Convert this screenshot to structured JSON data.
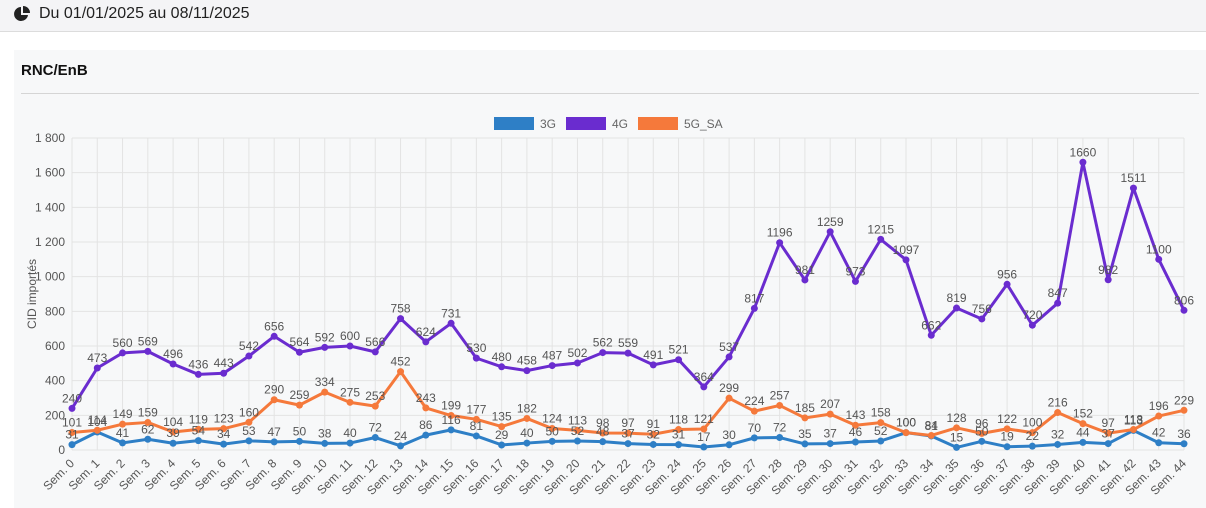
{
  "header": {
    "period": "Du 01/01/2025 au 08/11/2025",
    "icon": "pie-chart-icon"
  },
  "card": {
    "title": "RNC/EnB"
  },
  "chart_data": {
    "type": "line",
    "title": "",
    "xlabel": "",
    "ylabel": "CID importés",
    "ylim": [
      0,
      1800
    ],
    "yticks": [
      0,
      200,
      400,
      600,
      800,
      1000,
      1200,
      1400,
      1600,
      1800
    ],
    "ytick_labels": [
      "0",
      "200",
      "400",
      "600",
      "800",
      "1 000",
      "1 200",
      "1 400",
      "1 600",
      "1 800"
    ],
    "grid": true,
    "legend": "top-center",
    "categories": [
      "Sem. 0",
      "Sem. 1",
      "Sem. 2",
      "Sem. 3",
      "Sem. 4",
      "Sem. 5",
      "Sem. 6",
      "Sem. 7",
      "Sem. 8",
      "Sem. 9",
      "Sem. 10",
      "Sem. 11",
      "Sem. 12",
      "Sem. 13",
      "Sem. 14",
      "Sem. 15",
      "Sem. 16",
      "Sem. 17",
      "Sem. 18",
      "Sem. 19",
      "Sem. 20",
      "Sem. 21",
      "Sem. 22",
      "Sem. 23",
      "Sem. 24",
      "Sem. 25",
      "Sem. 26",
      "Sem. 27",
      "Sem. 28",
      "Sem. 29",
      "Sem. 30",
      "Sem. 31",
      "Sem. 32",
      "Sem. 33",
      "Sem. 34",
      "Sem. 35",
      "Sem. 36",
      "Sem. 37",
      "Sem. 38",
      "Sem. 39",
      "Sem. 40",
      "Sem. 41",
      "Sem. 42",
      "Sem. 43",
      "Sem. 44"
    ],
    "series": [
      {
        "name": "3G",
        "color": "#2e7fc6",
        "values": [
          31,
          104,
          41,
          62,
          39,
          54,
          34,
          53,
          47,
          50,
          38,
          40,
          72,
          24,
          86,
          116,
          81,
          29,
          40,
          50,
          52,
          48,
          37,
          32,
          31,
          17,
          30,
          70,
          72,
          35,
          37,
          46,
          52,
          100,
          81,
          15,
          50,
          19,
          22,
          32,
          44,
          37,
          113,
          42,
          36
        ]
      },
      {
        "name": "4G",
        "color": "#6a2ccf",
        "values": [
          240,
          473,
          560,
          569,
          496,
          436,
          443,
          542,
          656,
          564,
          592,
          600,
          566,
          758,
          624,
          731,
          530,
          480,
          458,
          487,
          502,
          562,
          559,
          491,
          521,
          364,
          537,
          817,
          1196,
          981,
          1259,
          973,
          1215,
          1097,
          662,
          819,
          756,
          956,
          720,
          847,
          1660,
          982,
          1511,
          1100,
          806
        ]
      },
      {
        "name": "5G_SA",
        "color": "#f5793b",
        "values": [
          101,
          114,
          149,
          159,
          104,
          119,
          123,
          160,
          290,
          259,
          334,
          275,
          253,
          452,
          243,
          199,
          177,
          135,
          182,
          124,
          113,
          98,
          97,
          91,
          118,
          121,
          299,
          224,
          257,
          185,
          207,
          143,
          158,
          100,
          84,
          128,
          96,
          122,
          100,
          216,
          152,
          97,
          118,
          196,
          229
        ]
      }
    ]
  }
}
